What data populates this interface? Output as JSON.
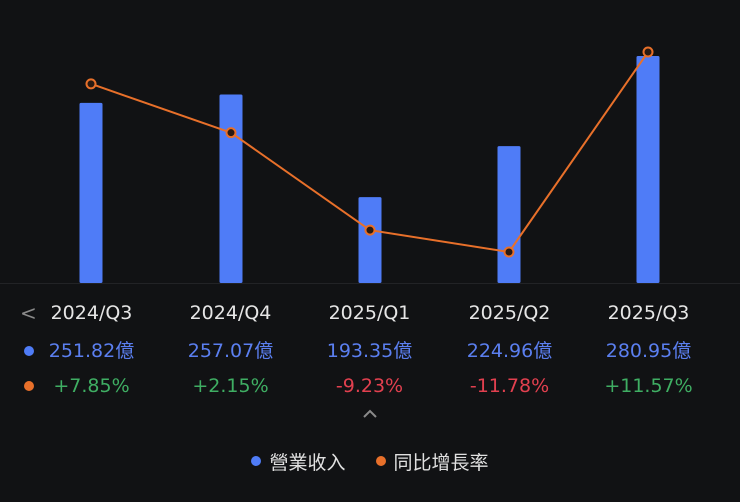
{
  "chart_data": {
    "type": "bar+line",
    "categories": [
      "2024/Q3",
      "2024/Q4",
      "2025/Q1",
      "2025/Q2",
      "2025/Q3"
    ],
    "series": [
      {
        "name": "營業收入",
        "type": "bar",
        "unit": "億",
        "values": [
          251.82,
          257.07,
          193.35,
          224.96,
          280.95
        ],
        "color": "#4f7cf7"
      },
      {
        "name": "同比增長率",
        "type": "line",
        "unit": "%",
        "values": [
          7.85,
          2.15,
          -9.23,
          -11.78,
          11.57
        ],
        "color": "#e8702a"
      }
    ],
    "title": "",
    "xlabel": "",
    "ylabel": "",
    "grid": false,
    "legend_position": "bottom"
  },
  "table": {
    "periods": [
      "2024/Q3",
      "2024/Q4",
      "2025/Q1",
      "2025/Q2",
      "2025/Q3"
    ],
    "revenue": [
      "251.82億",
      "257.07億",
      "193.35億",
      "224.96億",
      "280.95億"
    ],
    "growth": [
      "+7.85%",
      "+2.15%",
      "-9.23%",
      "-11.78%",
      "+11.57%"
    ],
    "growth_sign": [
      "pos",
      "pos",
      "neg",
      "neg",
      "pos"
    ]
  },
  "nav": {
    "prev_icon": "chevron-left-icon",
    "prev_glyph": "<",
    "collapse_icon": "chevron-up-icon"
  },
  "legend": {
    "items": [
      {
        "label": "營業收入",
        "color": "#4f7cf7"
      },
      {
        "label": "同比增長率",
        "color": "#e8702a"
      }
    ]
  },
  "colors": {
    "background": "#111214",
    "bar": "#4f7cf7",
    "line": "#e8702a",
    "revenue_text": "#5b7ff0",
    "positive": "#3fae63",
    "negative": "#e2404f"
  }
}
